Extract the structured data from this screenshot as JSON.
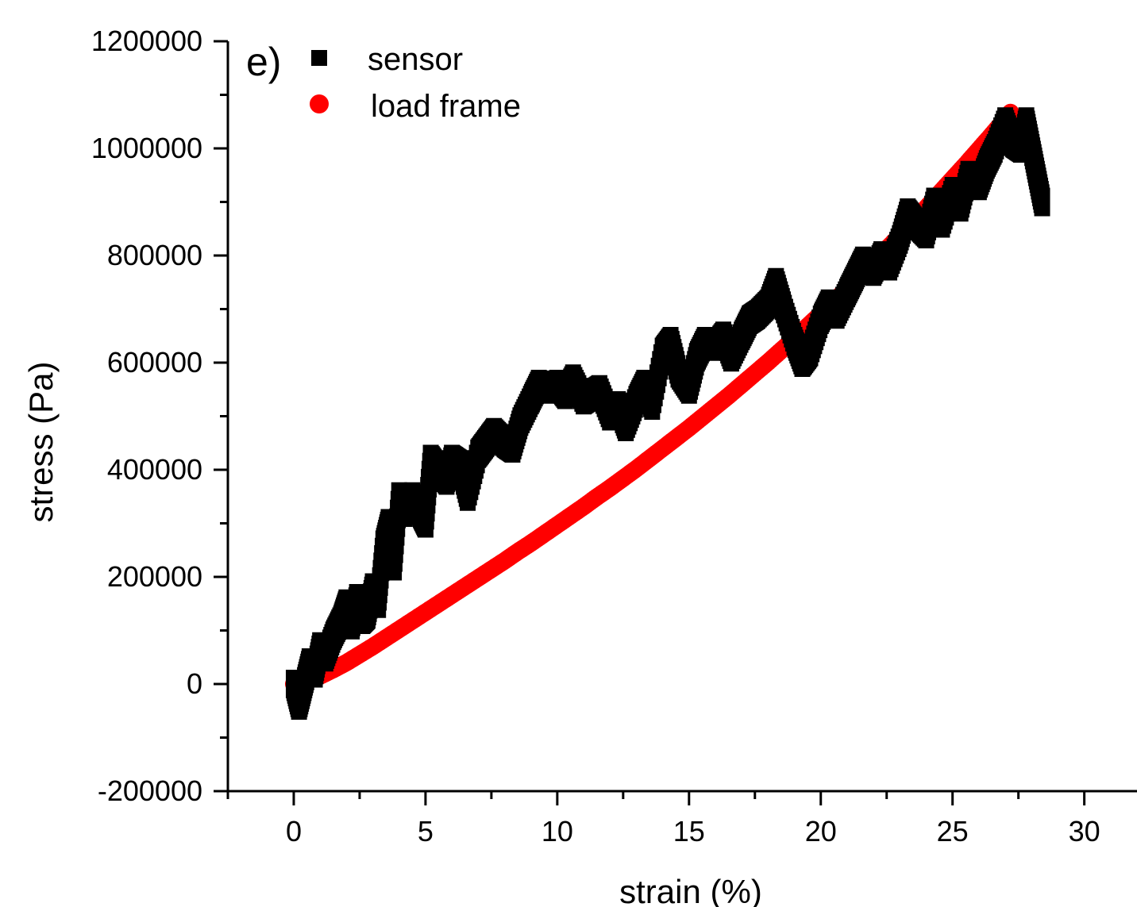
{
  "chart_data": {
    "type": "scatter",
    "panel_label": "e)",
    "xlabel": "strain (%)",
    "ylabel": "stress (Pa)",
    "xlim": [
      -2.5,
      32
    ],
    "ylim": [
      -200000,
      1200000
    ],
    "xticks": [
      0,
      5,
      10,
      15,
      20,
      25,
      30
    ],
    "xtick_labels": [
      "0",
      "5",
      "10",
      "15",
      "20",
      "25",
      "30"
    ],
    "yticks": [
      -200000,
      0,
      200000,
      400000,
      600000,
      800000,
      1000000,
      1200000
    ],
    "ytick_labels": [
      "-200000",
      "0",
      "200000",
      "400000",
      "600000",
      "800000",
      "1000000",
      "1200000"
    ],
    "grid": false,
    "legend_position": "top-left",
    "series": [
      {
        "name": "sensor",
        "marker": "square",
        "color": "#000000",
        "x": [
          0,
          0.2,
          0.4,
          0.6,
          0.8,
          1.0,
          1.2,
          1.5,
          1.8,
          2.0,
          2.2,
          2.4,
          2.6,
          2.8,
          3.0,
          3.2,
          3.4,
          3.6,
          3.8,
          4.0,
          4.2,
          4.5,
          4.8,
          5.0,
          5.2,
          5.5,
          5.8,
          6.0,
          6.3,
          6.6,
          7.0,
          7.3,
          7.6,
          8.0,
          8.3,
          8.6,
          9.0,
          9.3,
          9.6,
          10.0,
          10.3,
          10.6,
          11.0,
          11.3,
          11.6,
          12.0,
          12.3,
          12.6,
          13.0,
          13.3,
          13.6,
          14.0,
          14.3,
          14.6,
          15.0,
          15.3,
          15.6,
          16.0,
          16.3,
          16.6,
          17.0,
          17.3,
          17.6,
          18.0,
          18.3,
          18.6,
          19.0,
          19.3,
          19.6,
          20.0,
          20.3,
          20.6,
          21.0,
          21.3,
          21.6,
          22.0,
          22.3,
          22.6,
          23.0,
          23.3,
          23.6,
          24.0,
          24.3,
          24.6,
          25.0,
          25.3,
          25.6,
          26.0,
          26.3,
          26.6,
          27.0,
          27.3,
          27.6,
          27.8,
          28.0,
          28.2,
          28.4
        ],
        "y": [
          0,
          -40000,
          0,
          40000,
          20000,
          70000,
          50000,
          90000,
          120000,
          150000,
          110000,
          160000,
          120000,
          130000,
          180000,
          150000,
          260000,
          300000,
          220000,
          350000,
          320000,
          350000,
          320000,
          300000,
          420000,
          400000,
          380000,
          420000,
          410000,
          350000,
          430000,
          450000,
          470000,
          450000,
          440000,
          490000,
          530000,
          560000,
          550000,
          560000,
          540000,
          570000,
          530000,
          540000,
          550000,
          500000,
          520000,
          480000,
          530000,
          560000,
          520000,
          620000,
          640000,
          580000,
          550000,
          610000,
          640000,
          630000,
          650000,
          610000,
          650000,
          680000,
          690000,
          710000,
          750000,
          700000,
          640000,
          600000,
          620000,
          680000,
          710000,
          690000,
          730000,
          760000,
          790000,
          770000,
          800000,
          780000,
          830000,
          880000,
          860000,
          840000,
          900000,
          860000,
          920000,
          890000,
          950000,
          930000,
          970000,
          1000000,
          1050000,
          1010000,
          1000000,
          1050000,
          1000000,
          950000,
          900000
        ]
      },
      {
        "name": "load frame",
        "marker": "circle",
        "color": "#ff0000",
        "x": [
          0,
          0.5,
          1,
          1.5,
          2,
          2.5,
          3,
          3.5,
          4,
          4.5,
          5,
          5.5,
          6,
          6.5,
          7,
          7.5,
          8,
          8.5,
          9,
          9.5,
          10,
          10.5,
          11,
          11.5,
          12,
          12.5,
          13,
          13.5,
          14,
          14.5,
          15,
          15.5,
          16,
          16.5,
          17,
          17.5,
          18,
          18.5,
          19,
          19.5,
          20,
          20.5,
          21,
          21.5,
          22,
          22.5,
          23,
          23.5,
          24,
          24.5,
          25,
          25.5,
          26,
          26.5,
          27,
          27.2
        ],
        "y": [
          0,
          6000,
          15000,
          27000,
          40000,
          55000,
          70000,
          86000,
          102000,
          118000,
          134000,
          150000,
          166000,
          182000,
          198000,
          214000,
          230000,
          247000,
          263000,
          280000,
          297000,
          314000,
          331000,
          349000,
          366000,
          384000,
          402000,
          421000,
          440000,
          459000,
          478000,
          498000,
          518000,
          538000,
          559000,
          580000,
          601000,
          623000,
          645000,
          668000,
          691000,
          714000,
          738000,
          762000,
          787000,
          812000,
          837000,
          863000,
          889000,
          916000,
          943000,
          970000,
          998000,
          1026000,
          1055000,
          1067000
        ]
      }
    ]
  }
}
